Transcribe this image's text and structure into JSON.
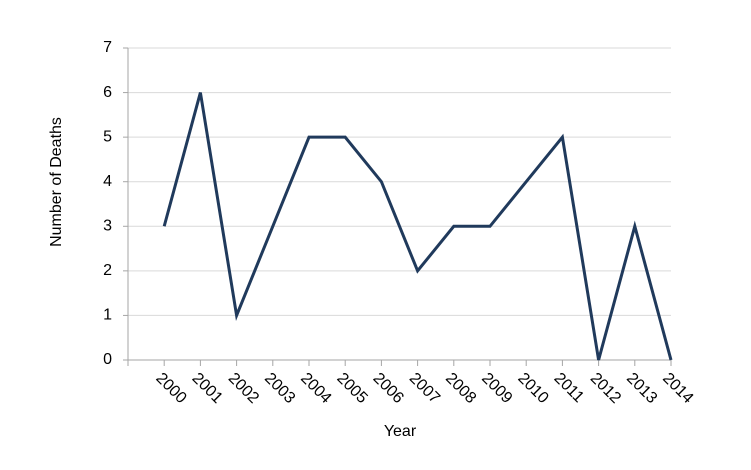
{
  "chart_data": {
    "type": "line",
    "x_label": "Year",
    "y_label": "Number of Deaths",
    "categories": [
      "2000",
      "2001",
      "2002",
      "2003",
      "2004",
      "2005",
      "2006",
      "2007",
      "2008",
      "2009",
      "2010",
      "2011",
      "2012",
      "2013",
      "2014"
    ],
    "values": [
      3,
      6,
      1,
      3,
      5,
      5,
      4,
      2,
      3,
      3,
      4,
      5,
      0,
      3,
      0
    ],
    "color": "#203a5c",
    "ylim": [
      0,
      7
    ],
    "yticks": [
      0,
      1,
      2,
      3,
      4,
      5,
      6,
      7
    ],
    "grid": true
  }
}
